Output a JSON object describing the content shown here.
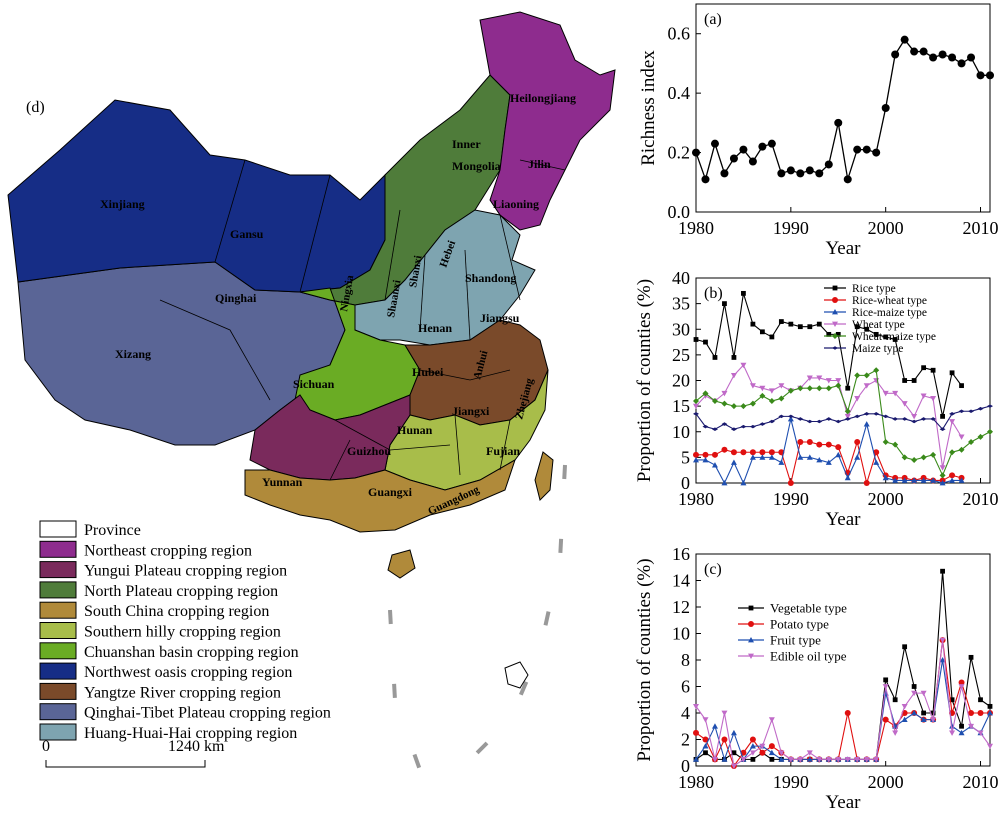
{
  "map": {
    "panel_label": "(d)",
    "scale_zero": "0",
    "scale_distance": "1240 km",
    "legend": [
      {
        "label": "Province",
        "color": "#ffffff"
      },
      {
        "label": "Northeast cropping region",
        "color": "#8e2c8e"
      },
      {
        "label": "Yungui Plateau cropping region",
        "color": "#7a2a5c"
      },
      {
        "label": "North Plateau cropping region",
        "color": "#4f7c3a"
      },
      {
        "label": "South China cropping region",
        "color": "#b08a3a"
      },
      {
        "label": "Southern hilly cropping region",
        "color": "#a8bd4a"
      },
      {
        "label": "Chuanshan basin cropping region",
        "color": "#6aac24"
      },
      {
        "label": "Northwest oasis cropping region",
        "color": "#162d86"
      },
      {
        "label": "Yangtze River cropping region",
        "color": "#7a4a2a"
      },
      {
        "label": "Qinghai-Tibet Plateau cropping region",
        "color": "#5a6596"
      },
      {
        "label": "Huang-Huai-Hai cropping region",
        "color": "#7ea4b0"
      }
    ],
    "provinces": {
      "heilongjiang": "Heilongjiang",
      "inner_mongolia_1": "Inner",
      "inner_mongolia_2": "Mongolia",
      "jilin": "Jilin",
      "liaoning": "Liaoning",
      "xinjiang": "Xinjiang",
      "gansu": "Gansu",
      "ningxia": "Ningxia",
      "qinghai": "Qinghai",
      "shaanxi": "Shaanxi",
      "shanxi": "Shanxi",
      "hebei": "Hebei",
      "shandong": "Shandong",
      "henan": "Henan",
      "jiangsu": "Jiangsu",
      "anhui": "Anhui",
      "xizang": "Xizang",
      "sichuan": "Sichuan",
      "hubei": "Hubei",
      "zhejiang": "Zhejiang",
      "jiangxi": "Jiangxi",
      "hunan": "Hunan",
      "guizhou": "Guizhou",
      "fujian": "Fujian",
      "yunnan": "Yunnan",
      "guangxi": "Guangxi",
      "guangdong": "Guangdong"
    }
  },
  "chart_data": [
    {
      "panel": "(a)",
      "type": "line",
      "xlabel": "Year",
      "ylabel": "Richness index",
      "xlim": [
        1980,
        2011
      ],
      "ylim": [
        0,
        0.7
      ],
      "xticks": [
        1980,
        1990,
        2000,
        2010
      ],
      "yticks": [
        0.0,
        0.2,
        0.4,
        0.6
      ],
      "ytick_labels": [
        "0.0",
        "0.2",
        "0.4",
        "0.6"
      ],
      "x": [
        1980,
        1981,
        1982,
        1983,
        1984,
        1985,
        1986,
        1987,
        1988,
        1989,
        1990,
        1991,
        1992,
        1993,
        1994,
        1995,
        1996,
        1997,
        1998,
        1999,
        2000,
        2001,
        2002,
        2003,
        2004,
        2005,
        2006,
        2007,
        2008,
        2009,
        2010,
        2011
      ],
      "series": [
        {
          "color": "#000000",
          "marker": "circle",
          "values": [
            0.2,
            0.11,
            0.23,
            0.13,
            0.18,
            0.21,
            0.17,
            0.22,
            0.23,
            0.13,
            0.14,
            0.13,
            0.14,
            0.13,
            0.16,
            0.3,
            0.11,
            0.21,
            0.21,
            0.2,
            0.35,
            0.53,
            0.58,
            0.54,
            0.54,
            0.52,
            0.53,
            0.52,
            0.5,
            0.52,
            0.46,
            0.46
          ]
        }
      ]
    },
    {
      "panel": "(b)",
      "type": "line",
      "xlabel": "Year",
      "ylabel": "Proportion of counties (%)",
      "xlim": [
        1980,
        2011
      ],
      "ylim": [
        0,
        40
      ],
      "xticks": [
        1980,
        1990,
        2000,
        2010
      ],
      "yticks": [
        0,
        5,
        10,
        15,
        20,
        25,
        30,
        35,
        40
      ],
      "legend_position": "top-right",
      "series": [
        {
          "name": "Rice type",
          "color": "#000000",
          "marker": "square",
          "x": [
            1980,
            1981,
            1982,
            1983,
            1984,
            1985,
            1986,
            1987,
            1988,
            1989,
            1990,
            1991,
            1992,
            1993,
            1994,
            1995,
            1996,
            1997,
            1998,
            1999,
            2000,
            2001,
            2002,
            2003,
            2004,
            2005,
            2006,
            2007,
            2008
          ],
          "values": [
            28,
            27.5,
            24.5,
            35,
            24.5,
            37,
            31,
            29.5,
            28.5,
            31.5,
            31,
            30.5,
            30.5,
            31,
            29,
            29,
            18.5,
            30.5,
            30,
            29,
            28.5,
            28,
            20,
            20,
            22.5,
            22,
            13,
            21.5,
            19
          ]
        },
        {
          "name": "Rice-wheat type",
          "color": "#e01010",
          "marker": "circle",
          "x": [
            1980,
            1981,
            1982,
            1983,
            1984,
            1985,
            1986,
            1987,
            1988,
            1989,
            1990,
            1991,
            1992,
            1993,
            1994,
            1995,
            1996,
            1997,
            1998,
            1999,
            2000,
            2001,
            2002,
            2003,
            2004,
            2005,
            2006,
            2007,
            2008
          ],
          "values": [
            5.5,
            5.5,
            5.5,
            6.5,
            6,
            6,
            6,
            6,
            6,
            6,
            0,
            8,
            8,
            7.5,
            7.5,
            7,
            2,
            8,
            0,
            6,
            1.5,
            1,
            1,
            0.5,
            1,
            0.5,
            0.5,
            1.5,
            1
          ]
        },
        {
          "name": "Rice-maize type",
          "color": "#1f4fb0",
          "marker": "triangle",
          "x": [
            1980,
            1981,
            1982,
            1983,
            1984,
            1985,
            1986,
            1987,
            1988,
            1989,
            1990,
            1991,
            1992,
            1993,
            1994,
            1995,
            1996,
            1997,
            1998,
            1999,
            2000,
            2001,
            2002,
            2003,
            2004,
            2005,
            2006,
            2007,
            2008
          ],
          "values": [
            4.5,
            4.5,
            3.5,
            0,
            4,
            0,
            5,
            5,
            5,
            4,
            12.5,
            5,
            5,
            4.5,
            4,
            5.5,
            1,
            5,
            11.5,
            4,
            1,
            0.5,
            0.5,
            0.5,
            0.5,
            0.5,
            0,
            0.5,
            0.5
          ]
        },
        {
          "name": "Wheat type",
          "color": "#c06ac8",
          "marker": "triangle-down",
          "x": [
            1980,
            1981,
            1982,
            1983,
            1984,
            1985,
            1986,
            1987,
            1988,
            1989,
            1990,
            1991,
            1992,
            1993,
            1994,
            1995,
            1996,
            1997,
            1998,
            1999,
            2000,
            2001,
            2002,
            2003,
            2004,
            2005,
            2006,
            2007,
            2008
          ],
          "values": [
            15,
            17,
            16,
            17.5,
            21,
            23,
            19,
            18.5,
            18,
            19,
            18,
            18.5,
            20.5,
            20.5,
            20,
            20,
            13,
            16.5,
            19,
            20,
            17.5,
            17.5,
            15.5,
            13,
            17,
            16.5,
            3,
            12,
            9
          ]
        },
        {
          "name": "Wheat-maize type",
          "color": "#3a8a1a",
          "marker": "diamond",
          "x": [
            1980,
            1981,
            1982,
            1983,
            1984,
            1985,
            1986,
            1987,
            1988,
            1989,
            1990,
            1991,
            1992,
            1993,
            1994,
            1995,
            1996,
            1997,
            1998,
            1999,
            2000,
            2001,
            2002,
            2003,
            2004,
            2005,
            2006,
            2007,
            2008,
            2009,
            2010,
            2011
          ],
          "values": [
            16,
            17.5,
            16,
            15.5,
            15,
            15,
            15.5,
            17,
            16,
            16.5,
            18,
            18.5,
            18.5,
            18.5,
            18.5,
            19,
            14,
            21,
            21,
            22,
            8,
            7.5,
            5,
            4.5,
            5,
            5.5,
            1.5,
            6,
            6.5,
            8,
            9,
            10
          ]
        },
        {
          "name": "Maize type",
          "color": "#1a1a6e",
          "marker": "star",
          "x": [
            1980,
            1981,
            1982,
            1983,
            1984,
            1985,
            1986,
            1987,
            1988,
            1989,
            1990,
            1991,
            1992,
            1993,
            1994,
            1995,
            1996,
            1997,
            1998,
            1999,
            2000,
            2001,
            2002,
            2003,
            2004,
            2005,
            2006,
            2007,
            2008,
            2009,
            2010,
            2011
          ],
          "values": [
            13.5,
            11,
            10.5,
            11.5,
            10.5,
            11,
            11,
            11.5,
            12,
            13,
            13,
            12.5,
            12,
            12,
            12.5,
            12,
            12.5,
            13,
            13.5,
            13.5,
            13,
            12.5,
            12.5,
            12,
            12.5,
            12.5,
            10.5,
            13.5,
            14,
            14,
            14.5,
            15
          ]
        }
      ]
    },
    {
      "panel": "(c)",
      "type": "line",
      "xlabel": "Year",
      "ylabel": "Proportion of counties (%)",
      "xlim": [
        1980,
        2011
      ],
      "ylim": [
        0,
        16
      ],
      "xticks": [
        1980,
        1990,
        2000,
        2010
      ],
      "yticks": [
        0,
        2,
        4,
        6,
        8,
        10,
        12,
        14,
        16
      ],
      "legend_position": "top-left",
      "x": [
        1980,
        1981,
        1982,
        1983,
        1984,
        1985,
        1986,
        1987,
        1988,
        1989,
        1990,
        1991,
        1992,
        1993,
        1994,
        1995,
        1996,
        1997,
        1998,
        1999,
        2000,
        2001,
        2002,
        2003,
        2004,
        2005,
        2006,
        2007,
        2008,
        2009,
        2010,
        2011
      ],
      "series": [
        {
          "name": "Vegetable type",
          "color": "#000000",
          "marker": "square",
          "values": [
            0.5,
            1.0,
            0.5,
            0.5,
            1.0,
            0.5,
            0.5,
            1.0,
            0.5,
            0.5,
            0.5,
            0.5,
            0.5,
            0.5,
            0.5,
            0.5,
            0.5,
            0.5,
            0.5,
            0.5,
            6.5,
            5.0,
            9.0,
            6.0,
            4.0,
            4.0,
            14.7,
            5.0,
            3.0,
            8.2,
            5.0,
            4.5
          ]
        },
        {
          "name": "Potato type",
          "color": "#e01010",
          "marker": "circle",
          "values": [
            2.5,
            2.0,
            0.5,
            2.0,
            0.0,
            1.0,
            2.0,
            1.0,
            1.5,
            1.0,
            0.5,
            0.5,
            0.5,
            0.5,
            0.5,
            0.5,
            4.0,
            0.5,
            0.5,
            0.5,
            3.5,
            3.0,
            4.0,
            4.0,
            3.5,
            3.5,
            9.5,
            4.0,
            6.3,
            4.0,
            4.0,
            4.0
          ]
        },
        {
          "name": "Fruit type",
          "color": "#1f4fb0",
          "marker": "triangle",
          "values": [
            0.5,
            1.5,
            3.0,
            0.5,
            2.5,
            0.5,
            1.5,
            1.5,
            1.0,
            0.5,
            0.5,
            0.5,
            0.5,
            0.5,
            0.5,
            0.5,
            0.5,
            0.5,
            0.5,
            0.5,
            5.5,
            3.0,
            3.5,
            4.0,
            3.5,
            3.5,
            8.0,
            3.0,
            2.5,
            3.0,
            2.5,
            4.0
          ]
        },
        {
          "name": "Edible oil type",
          "color": "#c06ac8",
          "marker": "triangle-down",
          "values": [
            4.5,
            3.5,
            0.5,
            4.0,
            0.0,
            0.5,
            1.0,
            1.5,
            3.5,
            1.0,
            0.5,
            0.5,
            1.0,
            0.5,
            0.5,
            0.5,
            0.5,
            0.5,
            0.5,
            0.5,
            6.0,
            2.5,
            4.5,
            5.5,
            5.5,
            3.5,
            9.5,
            2.5,
            6.0,
            3.0,
            2.5,
            1.5
          ]
        }
      ]
    }
  ]
}
